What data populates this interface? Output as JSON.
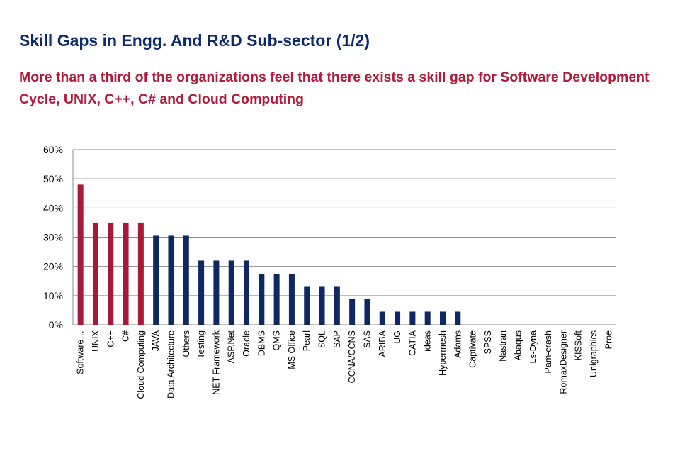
{
  "slide": {
    "title": "Skill Gaps in Engg. And R&D Sub-sector (1/2)",
    "subtitle": "More than a third of the organizations feel that there exists a skill gap for Software Development Cycle, UNIX, C++, C# and Cloud Computing"
  },
  "colors": {
    "highlight": "#a8183a",
    "default": "#0e2864",
    "gridline": "#8c8c8c",
    "title": "#0d2a6b",
    "subtitle": "#b01c3c"
  },
  "chart_data": {
    "type": "bar",
    "categories": [
      "Software…",
      "UNIX",
      "C++",
      "C#",
      "Cloud Computing",
      "JAVA",
      "Data Architecture",
      "Others",
      "Testing",
      ".NET Framework",
      "ASP.Net",
      "Oracle",
      "DBMS",
      "QMS",
      "MS Office",
      "Pearl",
      "SQL",
      "SAP",
      "CCNA/CCNS",
      "SAS",
      "ARIBA",
      "UG",
      "CATIA",
      "ideas",
      "Hypermesh",
      "Adams",
      "Captivate",
      "SPSS",
      "Nastran",
      "Abaqus",
      "Ls-Dyna",
      "Pam-crash",
      "RomaxDesigner",
      "KISSoft",
      "Unigraphics",
      "Proe"
    ],
    "values": [
      48,
      35,
      35,
      35,
      35,
      30.5,
      30.5,
      30.5,
      22,
      22,
      22,
      22,
      17.5,
      17.5,
      17.5,
      13,
      13,
      13,
      9,
      9,
      4.5,
      4.5,
      4.5,
      4.5,
      4.5,
      4.5,
      0,
      0,
      0,
      0,
      0,
      0,
      0,
      0,
      0,
      0
    ],
    "highlighted": [
      true,
      true,
      true,
      true,
      true,
      false,
      false,
      false,
      false,
      false,
      false,
      false,
      false,
      false,
      false,
      false,
      false,
      false,
      false,
      false,
      false,
      false,
      false,
      false,
      false,
      false,
      false,
      false,
      false,
      false,
      false,
      false,
      false,
      false,
      false,
      false
    ],
    "ylim": [
      0,
      60
    ],
    "yticks": [
      0,
      10,
      20,
      30,
      40,
      50,
      60
    ],
    "ytick_format": "percent",
    "grid": true,
    "xlabel": "",
    "ylabel": "",
    "title": ""
  }
}
